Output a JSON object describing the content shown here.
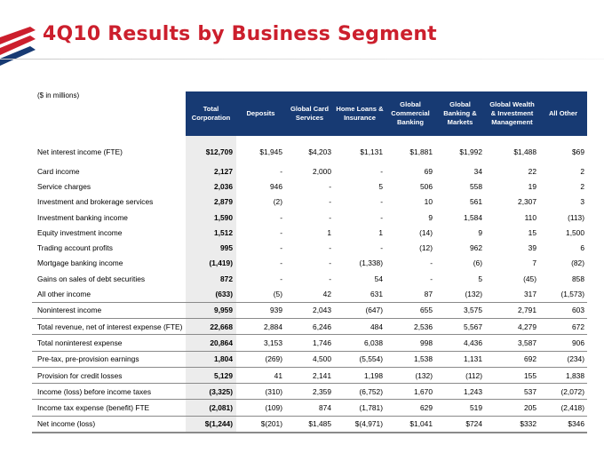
{
  "slide": {
    "title": "4Q10 Results by Business Segment",
    "units": "($ in millions)"
  },
  "table": {
    "columns": [
      "Total Corporation",
      "Deposits",
      "Global Card Services",
      "Home Loans & Insurance",
      "Global Commercial Banking",
      "Global Banking & Markets",
      "Global Wealth & Investment Management",
      "All Other"
    ],
    "rows": [
      {
        "label": "Net interest income (FTE)",
        "values": [
          "$12,709",
          "$1,945",
          "$4,203",
          "$1,131",
          "$1,881",
          "$1,992",
          "$1,488",
          "$69"
        ]
      },
      {
        "label": "Card income",
        "values": [
          "2,127",
          "-",
          "2,000",
          "-",
          "69",
          "34",
          "22",
          "2"
        ]
      },
      {
        "label": "Service charges",
        "values": [
          "2,036",
          "946",
          "-",
          "5",
          "506",
          "558",
          "19",
          "2"
        ]
      },
      {
        "label": "Investment and brokerage services",
        "values": [
          "2,879",
          "(2)",
          "-",
          "-",
          "10",
          "561",
          "2,307",
          "3"
        ]
      },
      {
        "label": "Investment banking income",
        "values": [
          "1,590",
          "-",
          "-",
          "-",
          "9",
          "1,584",
          "110",
          "(113)"
        ]
      },
      {
        "label": "Equity investment income",
        "values": [
          "1,512",
          "-",
          "1",
          "1",
          "(14)",
          "9",
          "15",
          "1,500"
        ]
      },
      {
        "label": "Trading account profits",
        "values": [
          "995",
          "-",
          "-",
          "-",
          "(12)",
          "962",
          "39",
          "6"
        ]
      },
      {
        "label": "Mortgage banking income",
        "values": [
          "(1,419)",
          "-",
          "-",
          "(1,338)",
          "-",
          "(6)",
          "7",
          "(82)"
        ]
      },
      {
        "label": "Gains on sales of debt securities",
        "values": [
          "872",
          "-",
          "-",
          "54",
          "-",
          "5",
          "(45)",
          "858"
        ]
      },
      {
        "label": "All other income",
        "values": [
          "(633)",
          "(5)",
          "42",
          "631",
          "87",
          "(132)",
          "317",
          "(1,573)"
        ]
      },
      {
        "label": "Noninterest income",
        "values": [
          "9,959",
          "939",
          "2,043",
          "(647)",
          "655",
          "3,575",
          "2,791",
          "603"
        ]
      },
      {
        "label": "Total revenue, net of interest expense (FTE)",
        "values": [
          "22,668",
          "2,884",
          "6,246",
          "484",
          "2,536",
          "5,567",
          "4,279",
          "672"
        ]
      },
      {
        "label": "Total noninterest expense",
        "values": [
          "20,864",
          "3,153",
          "1,746",
          "6,038",
          "998",
          "4,436",
          "3,587",
          "906"
        ]
      },
      {
        "label": "Pre-tax, pre-provision earnings",
        "values": [
          "1,804",
          "(269)",
          "4,500",
          "(5,554)",
          "1,538",
          "1,131",
          "692",
          "(234)"
        ]
      },
      {
        "label": "Provision for credit losses",
        "values": [
          "5,129",
          "41",
          "2,141",
          "1,198",
          "(132)",
          "(112)",
          "155",
          "1,838"
        ]
      },
      {
        "label": "Income (loss) before income taxes",
        "values": [
          "(3,325)",
          "(310)",
          "2,359",
          "(6,752)",
          "1,670",
          "1,243",
          "537",
          "(2,072)"
        ]
      },
      {
        "label": "Income tax expense (benefit) FTE",
        "values": [
          "(2,081)",
          "(109)",
          "874",
          "(1,781)",
          "629",
          "519",
          "205",
          "(2,418)"
        ]
      },
      {
        "label": "Net income (loss)",
        "values": [
          "$(1,244)",
          "$(201)",
          "$1,485",
          "$(4,971)",
          "$1,041",
          "$724",
          "$332",
          "$346"
        ]
      }
    ]
  },
  "colors": {
    "title": "#cc1f2d",
    "header_bg": "#173a73",
    "total_col_bg": "#ececec"
  }
}
